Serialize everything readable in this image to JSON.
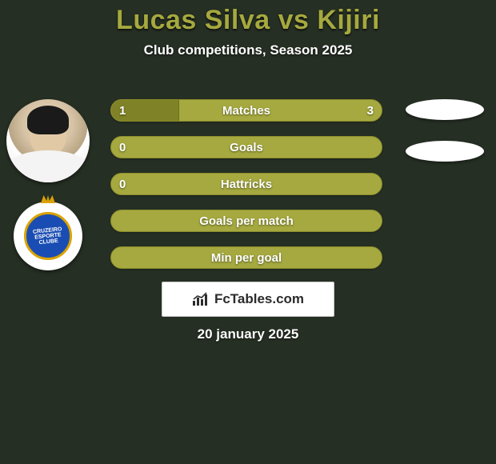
{
  "header": {
    "title": "Lucas Silva vs Kijiri",
    "subtitle": "Club competitions, Season 2025",
    "title_color": "#a5a93f",
    "subtitle_color": "#ffffff"
  },
  "background_color": "#262f24",
  "player_left": {
    "name": "Lucas Silva",
    "crest_label": "CRUZEIRO ESPORTE CLUBE",
    "crest_primary": "#1a4db3",
    "crest_secondary": "#d9a300"
  },
  "player_right": {
    "name": "Kijiri"
  },
  "bars": {
    "base_color": "#a5a93f",
    "fill_color": "#7f8226",
    "border_color": "#8b8d2a",
    "items": [
      {
        "label": "Matches",
        "left": "1",
        "right": "3",
        "left_pct": 25,
        "show_vals": true
      },
      {
        "label": "Goals",
        "left": "0",
        "right": "",
        "left_pct": 0,
        "show_vals": true
      },
      {
        "label": "Hattricks",
        "left": "0",
        "right": "",
        "left_pct": 0,
        "show_vals": true
      },
      {
        "label": "Goals per match",
        "left": "",
        "right": "",
        "left_pct": 0,
        "show_vals": false
      },
      {
        "label": "Min per goal",
        "left": "",
        "right": "",
        "left_pct": 0,
        "show_vals": false
      }
    ]
  },
  "right_ellipses": {
    "count": 2,
    "color": "#ffffff"
  },
  "watermark": {
    "text": "FcTables.com",
    "bg": "#ffffff",
    "text_color": "#2b2b2b"
  },
  "footer": {
    "date": "20 january 2025"
  }
}
